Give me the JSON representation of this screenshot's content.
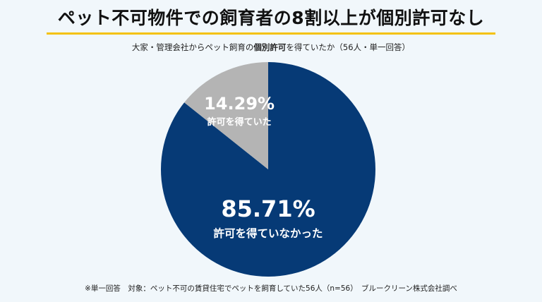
{
  "title": "ペット不可物件での飼育者の8割以上が個別許可なし",
  "subtitle": {
    "before": "大家・管理会社からペット飼育の",
    "bold": "個別許可",
    "after": "を得ていたか（56人・単一回答）"
  },
  "footnote": "※単一回答　対象：ペット不可の賃貸住宅でペットを飼育していた56人（n=56）　ブルークリーン株式会社調べ",
  "colors": {
    "not_permitted": "#063a76",
    "permitted": "#b4b4b4",
    "background": "#f1f7fb",
    "accent": "#f4c20d"
  },
  "chart_data": {
    "type": "pie",
    "slices": [
      {
        "label": "許可を得ていなかった",
        "value": 85.71,
        "value_label": "85.71%",
        "color": "#063a76"
      },
      {
        "label": "許可を得ていた",
        "value": 14.29,
        "value_label": "14.29%",
        "color": "#b4b4b4"
      }
    ]
  }
}
